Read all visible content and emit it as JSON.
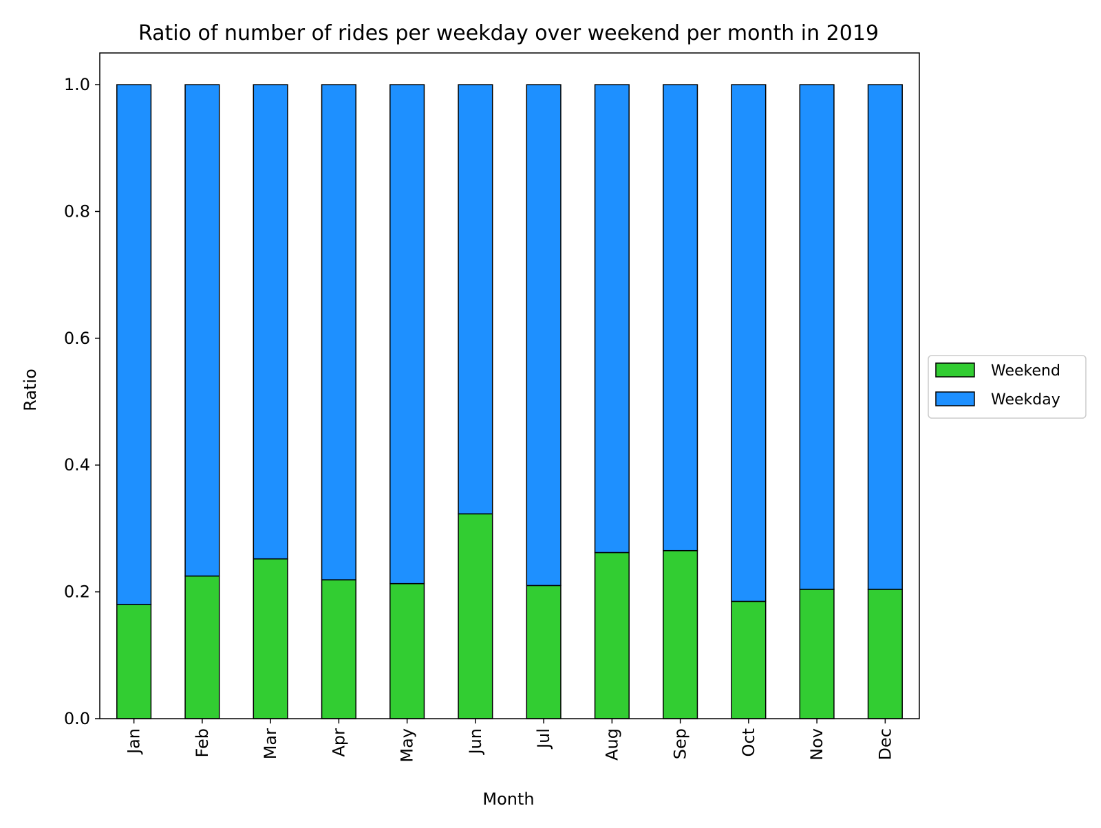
{
  "chart_data": {
    "type": "bar",
    "stacked": true,
    "title": "Ratio of number of rides per weekday over weekend per month in 2019",
    "xlabel": "Month",
    "ylabel": "Ratio",
    "categories": [
      "Jan",
      "Feb",
      "Mar",
      "Apr",
      "May",
      "Jun",
      "Jul",
      "Aug",
      "Sep",
      "Oct",
      "Nov",
      "Dec"
    ],
    "ylim": [
      0,
      1.05
    ],
    "yticks": [
      0.0,
      0.2,
      0.4,
      0.6,
      0.8,
      1.0
    ],
    "ytick_labels": [
      "0.0",
      "0.2",
      "0.4",
      "0.6",
      "0.8",
      "1.0"
    ],
    "grid": false,
    "legend_position": "center-right",
    "series": [
      {
        "name": "Weekend",
        "color": "#32cd32",
        "values": [
          0.18,
          0.225,
          0.252,
          0.219,
          0.213,
          0.323,
          0.21,
          0.262,
          0.265,
          0.185,
          0.204,
          0.204
        ]
      },
      {
        "name": "Weekday",
        "color": "#1e90ff",
        "values": [
          0.82,
          0.775,
          0.748,
          0.781,
          0.787,
          0.677,
          0.79,
          0.738,
          0.735,
          0.815,
          0.796,
          0.796
        ]
      }
    ]
  }
}
